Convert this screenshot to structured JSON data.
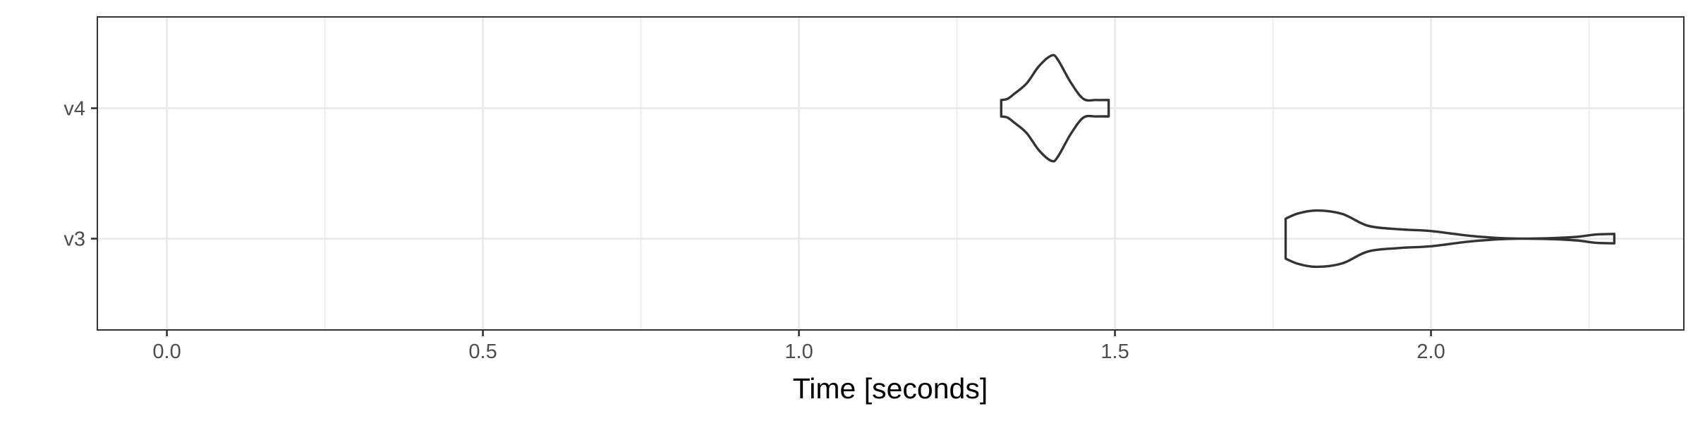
{
  "chart_data": {
    "type": "violin",
    "title": "",
    "xlabel": "Time [seconds]",
    "ylabel": "",
    "xlim": [
      -0.11,
      2.4
    ],
    "x_ticks": [
      {
        "value": 0.0,
        "label": "0.0"
      },
      {
        "value": 0.5,
        "label": "0.5"
      },
      {
        "value": 1.0,
        "label": "1.0"
      },
      {
        "value": 1.5,
        "label": "1.5"
      },
      {
        "value": 2.0,
        "label": "2.0"
      }
    ],
    "categories": [
      "v3",
      "v4"
    ],
    "grid": true,
    "colors": {
      "outline": "#333333",
      "grid": "#ebebeb",
      "background": "#ffffff"
    },
    "series": [
      {
        "category": "v4",
        "min": 1.32,
        "max": 1.49,
        "density": [
          [
            1.32,
            0.14
          ],
          [
            1.33,
            0.16
          ],
          [
            1.34,
            0.24
          ],
          [
            1.36,
            0.42
          ],
          [
            1.38,
            0.72
          ],
          [
            1.4,
            0.9
          ],
          [
            1.41,
            0.82
          ],
          [
            1.43,
            0.44
          ],
          [
            1.45,
            0.16
          ],
          [
            1.47,
            0.14
          ],
          [
            1.49,
            0.14
          ]
        ]
      },
      {
        "category": "v3",
        "min": 1.77,
        "max": 2.29,
        "density": [
          [
            1.77,
            0.34
          ],
          [
            1.79,
            0.43
          ],
          [
            1.82,
            0.48
          ],
          [
            1.86,
            0.42
          ],
          [
            1.9,
            0.22
          ],
          [
            1.95,
            0.16
          ],
          [
            2.0,
            0.13
          ],
          [
            2.06,
            0.05
          ],
          [
            2.12,
            0.005
          ],
          [
            2.18,
            0.005
          ],
          [
            2.23,
            0.03
          ],
          [
            2.26,
            0.07
          ],
          [
            2.29,
            0.08
          ]
        ]
      }
    ]
  }
}
